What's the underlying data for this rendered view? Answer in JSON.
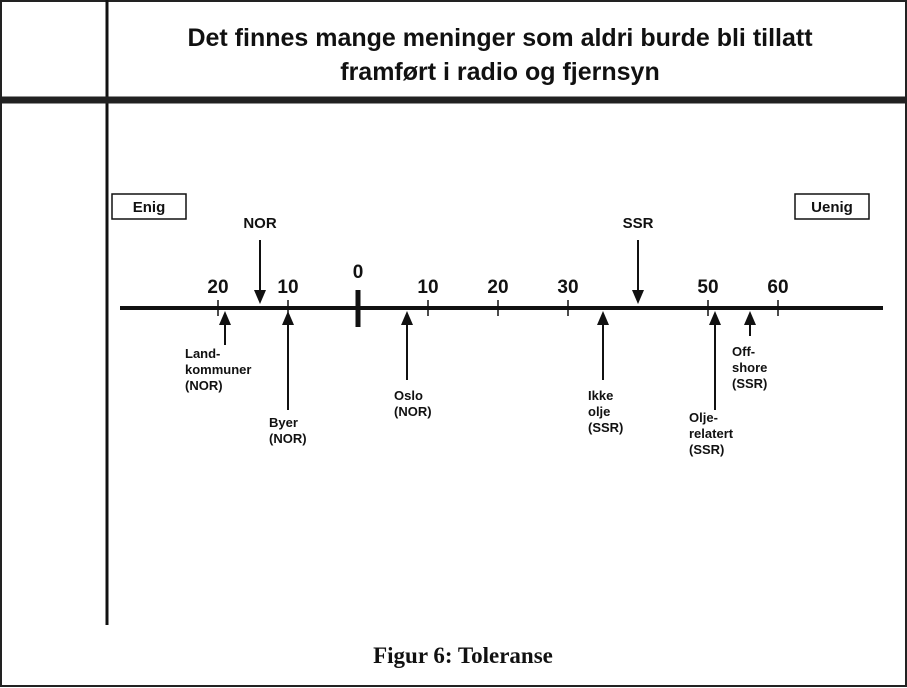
{
  "title": [
    "Det finnes mange meninger som aldri burde bli tillatt",
    "framført i radio og fjernsyn"
  ],
  "left_end": "Enig",
  "right_end": "Uenig",
  "axis": {
    "xlim": [
      -34,
      75
    ],
    "xticks": [
      {
        "value": -20,
        "label": "20"
      },
      {
        "value": -10,
        "label": "10"
      },
      0,
      10,
      20,
      30,
      50,
      60
    ]
  },
  "arrows_above": [
    {
      "label": [
        "NOR"
      ],
      "value": -14
    },
    {
      "label": [
        "SSR"
      ],
      "value": 40
    }
  ],
  "arrows_below": [
    {
      "label": [
        "Land-",
        "kommuner",
        "(NOR)"
      ],
      "value": -19
    },
    {
      "label": [
        "Byer",
        "(NOR)"
      ],
      "value": -10
    },
    {
      "label": [
        "Oslo",
        "(NOR)"
      ],
      "value": 7
    },
    {
      "label": [
        "Ikke",
        "olje",
        "(SSR)"
      ],
      "value": 35
    },
    {
      "label": [
        "Olje-",
        "relatert",
        "(SSR)"
      ],
      "value": 51
    },
    {
      "label": [
        "Off-",
        "shore",
        "(SSR)"
      ],
      "value": 56
    }
  ],
  "caption": "Figur 6: Toleranse"
}
